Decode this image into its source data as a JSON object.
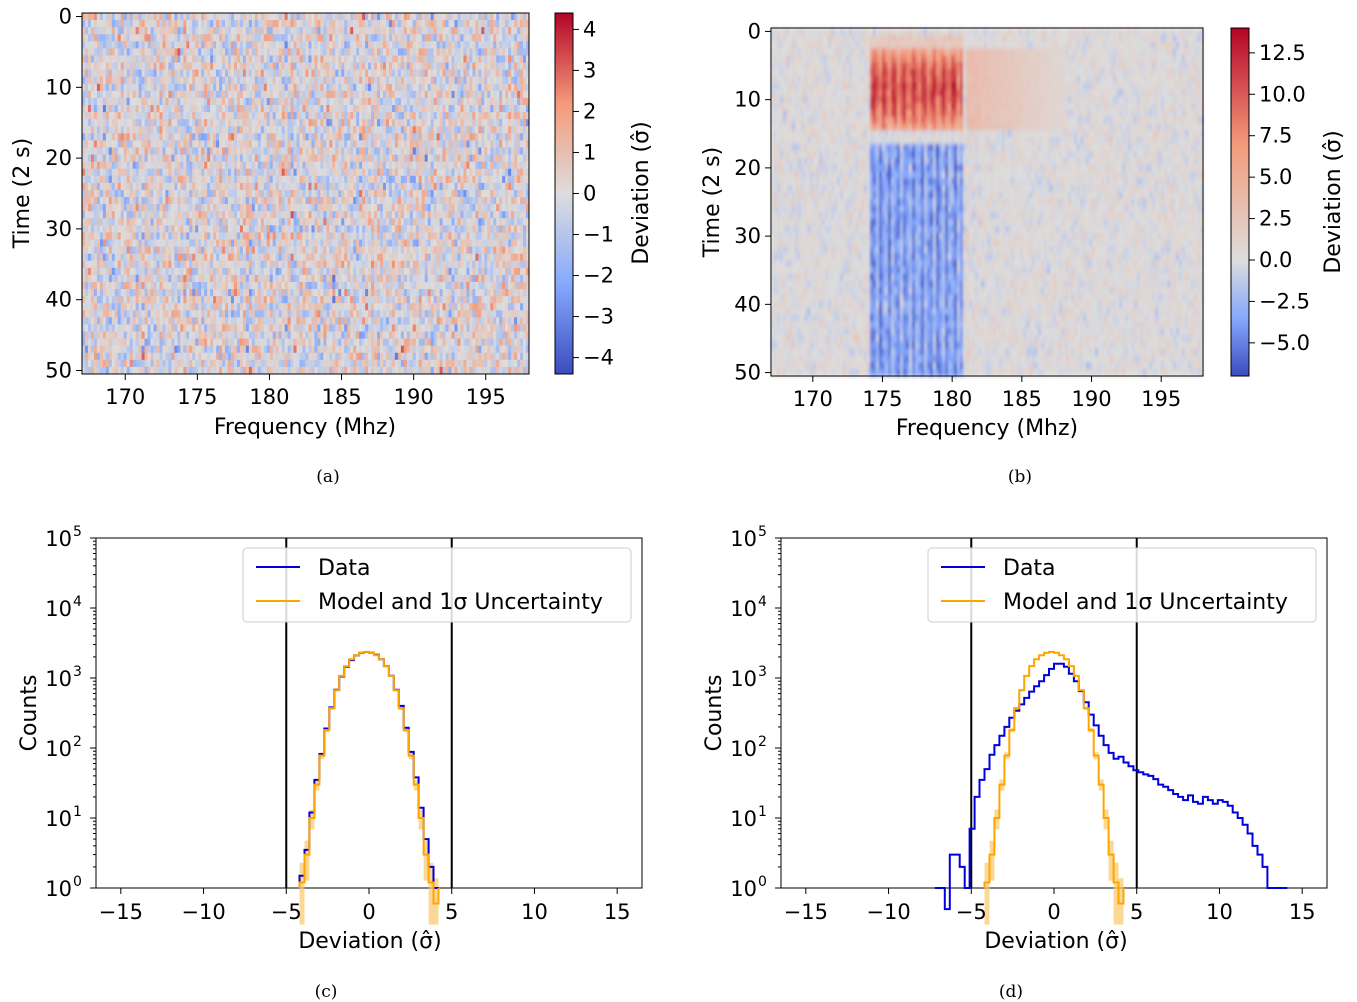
{
  "chart_data": [
    {
      "panel": "a",
      "type": "heatmap",
      "caption": "(a)",
      "xlabel": "Frequency (Mhz)",
      "ylabel": "Time (2 s)",
      "xlim": [
        167,
        198
      ],
      "ylim": [
        50.5,
        -0.5
      ],
      "x_ticks": [
        170,
        175,
        180,
        185,
        190,
        195
      ],
      "y_ticks": [
        0,
        10,
        20,
        30,
        40,
        50
      ],
      "colorbar": {
        "label": "Deviation (σ̂)",
        "range": [
          -4.4,
          4.4
        ],
        "ticks": [
          4,
          3,
          2,
          1,
          0,
          -1,
          -2,
          -3,
          -4
        ],
        "tick_labels": [
          "4",
          "3",
          "2",
          "1",
          "0",
          "−1",
          "−2",
          "−3",
          "−4"
        ],
        "colormap": "coolwarm"
      },
      "description": "Noise-like pattern with no coherent structure; values roughly Gaussian within ±4 σ̂"
    },
    {
      "panel": "b",
      "type": "heatmap",
      "caption": "(b)",
      "xlabel": "Frequency (Mhz)",
      "ylabel": "Time (2 s)",
      "xlim": [
        167,
        198
      ],
      "ylim": [
        50.5,
        -0.5
      ],
      "x_ticks": [
        170,
        175,
        180,
        185,
        190,
        195
      ],
      "y_ticks": [
        0,
        10,
        20,
        30,
        40,
        50
      ],
      "colorbar": {
        "label": "Deviation (σ̂)",
        "range": [
          -7,
          14
        ],
        "ticks": [
          12.5,
          10.0,
          7.5,
          5.0,
          2.5,
          0.0,
          -2.5,
          -5.0
        ],
        "tick_labels": [
          "12.5",
          "10.0",
          "7.5",
          "5.0",
          "2.5",
          "0.0",
          "−2.5",
          "−5.0"
        ],
        "colormap": "coolwarm"
      },
      "features": [
        {
          "kind": "positive_burst",
          "freq_range": [
            174.2,
            180.8
          ],
          "time_range": [
            3,
            14
          ],
          "peak": 13
        },
        {
          "kind": "weak_positive",
          "freq_range": [
            181,
            188
          ],
          "time_range": [
            3,
            14
          ],
          "peak": 4
        },
        {
          "kind": "negative_band",
          "freq_range": [
            174.2,
            180.8
          ],
          "time_range": [
            17,
            50
          ],
          "peak": -6
        }
      ]
    },
    {
      "panel": "c",
      "type": "line",
      "caption": "(c)",
      "xlabel": "Deviation (σ̂)",
      "ylabel": "Counts",
      "xlim": [
        -16.5,
        16.5
      ],
      "ylim_log10": [
        0,
        5
      ],
      "yscale": "log",
      "x_ticks": [
        -15,
        -10,
        -5,
        0,
        5,
        10,
        15
      ],
      "x_tick_labels": [
        "−15",
        "−10",
        "−5",
        "0",
        "5",
        "10",
        "15"
      ],
      "y_tick_labels": [
        "10",
        "10",
        "10",
        "10",
        "10",
        "10"
      ],
      "y_tick_exps": [
        "0",
        "1",
        "2",
        "3",
        "4",
        "5"
      ],
      "vlines": [
        -5,
        5
      ],
      "legend": {
        "position": "upper-right",
        "entries": [
          "Data",
          "Model and 1σ Uncertainty"
        ]
      },
      "colors": {
        "data": "#0000dd",
        "model": "#ffa500",
        "band": "#fbc76a",
        "vline": "#000000"
      },
      "series": [
        {
          "name": "Data",
          "bin_edges": [
            -4.2,
            -3.9,
            -3.6,
            -3.3,
            -3.0,
            -2.7,
            -2.4,
            -2.1,
            -1.8,
            -1.5,
            -1.2,
            -0.9,
            -0.6,
            -0.3,
            0.0,
            0.3,
            0.6,
            0.9,
            1.2,
            1.5,
            1.8,
            2.1,
            2.4,
            2.7,
            3.0,
            3.3,
            3.6,
            3.9,
            4.2
          ],
          "counts": [
            1.5,
            3.5,
            12,
            35,
            82,
            190,
            380,
            680,
            1050,
            1450,
            1800,
            2100,
            2280,
            2350,
            2300,
            2150,
            1850,
            1480,
            1080,
            680,
            400,
            195,
            88,
            38,
            14,
            5,
            2,
            1
          ]
        },
        {
          "name": "Model and 1σ Uncertainty",
          "bin_edges": [
            -4.2,
            -3.9,
            -3.6,
            -3.3,
            -3.0,
            -2.7,
            -2.4,
            -2.1,
            -1.8,
            -1.5,
            -1.2,
            -0.9,
            -0.6,
            -0.3,
            0.0,
            0.3,
            0.6,
            0.9,
            1.2,
            1.5,
            1.8,
            2.1,
            2.4,
            2.7,
            3.0,
            3.3,
            3.6,
            3.9,
            4.2
          ],
          "counts": [
            1.2,
            3,
            10,
            30,
            78,
            180,
            370,
            670,
            1070,
            1480,
            1850,
            2120,
            2300,
            2360,
            2300,
            2120,
            1850,
            1480,
            1070,
            670,
            370,
            180,
            78,
            30,
            10,
            3,
            1.2,
            0.6
          ]
        }
      ]
    },
    {
      "panel": "d",
      "type": "line",
      "caption": "(d)",
      "xlabel": "Deviation (σ̂)",
      "ylabel": "Counts",
      "xlim": [
        -16.5,
        16.5
      ],
      "ylim_log10": [
        0,
        5
      ],
      "yscale": "log",
      "x_ticks": [
        -15,
        -10,
        -5,
        0,
        5,
        10,
        15
      ],
      "x_tick_labels": [
        "−15",
        "−10",
        "−5",
        "0",
        "5",
        "10",
        "15"
      ],
      "y_tick_labels": [
        "10",
        "10",
        "10",
        "10",
        "10",
        "10"
      ],
      "y_tick_exps": [
        "0",
        "1",
        "2",
        "3",
        "4",
        "5"
      ],
      "vlines": [
        -5,
        5
      ],
      "legend": {
        "position": "upper-right",
        "entries": [
          "Data",
          "Model and 1σ Uncertainty"
        ]
      },
      "colors": {
        "data": "#0000dd",
        "model": "#ffa500",
        "band": "#fbc76a",
        "vline": "#000000"
      },
      "series": [
        {
          "name": "Data",
          "bin_edges": [
            -7.2,
            -6.9,
            -6.6,
            -6.3,
            -6.0,
            -5.7,
            -5.4,
            -5.1,
            -4.8,
            -4.5,
            -4.2,
            -3.9,
            -3.6,
            -3.3,
            -3.0,
            -2.7,
            -2.4,
            -2.1,
            -1.8,
            -1.5,
            -1.2,
            -0.9,
            -0.6,
            -0.3,
            0.0,
            0.3,
            0.6,
            0.9,
            1.2,
            1.5,
            1.8,
            2.1,
            2.4,
            2.7,
            3.0,
            3.3,
            3.6,
            3.9,
            4.2,
            4.5,
            4.8,
            5.1,
            5.4,
            5.7,
            6.0,
            6.3,
            6.6,
            6.9,
            7.2,
            7.5,
            7.8,
            8.1,
            8.4,
            8.7,
            9.0,
            9.3,
            9.6,
            9.9,
            10.2,
            10.5,
            10.8,
            11.1,
            11.4,
            11.7,
            12.0,
            12.3,
            12.6,
            12.9,
            13.2,
            13.5,
            13.8,
            14.1
          ],
          "counts": [
            1,
            1,
            0.5,
            3,
            3,
            2,
            1,
            7,
            20,
            35,
            50,
            80,
            110,
            150,
            200,
            270,
            340,
            420,
            520,
            640,
            760,
            900,
            1100,
            1350,
            1600,
            1600,
            1450,
            1150,
            900,
            650,
            450,
            300,
            210,
            150,
            110,
            85,
            70,
            75,
            62,
            55,
            48,
            45,
            42,
            40,
            36,
            30,
            28,
            25,
            22,
            20,
            18,
            21,
            17,
            16,
            20,
            18,
            16,
            18,
            17,
            15,
            12,
            10,
            8,
            6,
            4,
            3,
            2,
            1,
            1,
            1,
            1
          ]
        },
        {
          "name": "Model and 1σ Uncertainty",
          "bin_edges": [
            -4.2,
            -3.9,
            -3.6,
            -3.3,
            -3.0,
            -2.7,
            -2.4,
            -2.1,
            -1.8,
            -1.5,
            -1.2,
            -0.9,
            -0.6,
            -0.3,
            0.0,
            0.3,
            0.6,
            0.9,
            1.2,
            1.5,
            1.8,
            2.1,
            2.4,
            2.7,
            3.0,
            3.3,
            3.6,
            3.9,
            4.2
          ],
          "counts": [
            1.2,
            3,
            10,
            30,
            78,
            180,
            370,
            670,
            1070,
            1480,
            1850,
            2120,
            2300,
            2360,
            2300,
            2120,
            1850,
            1480,
            1070,
            670,
            370,
            180,
            78,
            30,
            10,
            3,
            1.2,
            0.6
          ]
        }
      ]
    }
  ]
}
